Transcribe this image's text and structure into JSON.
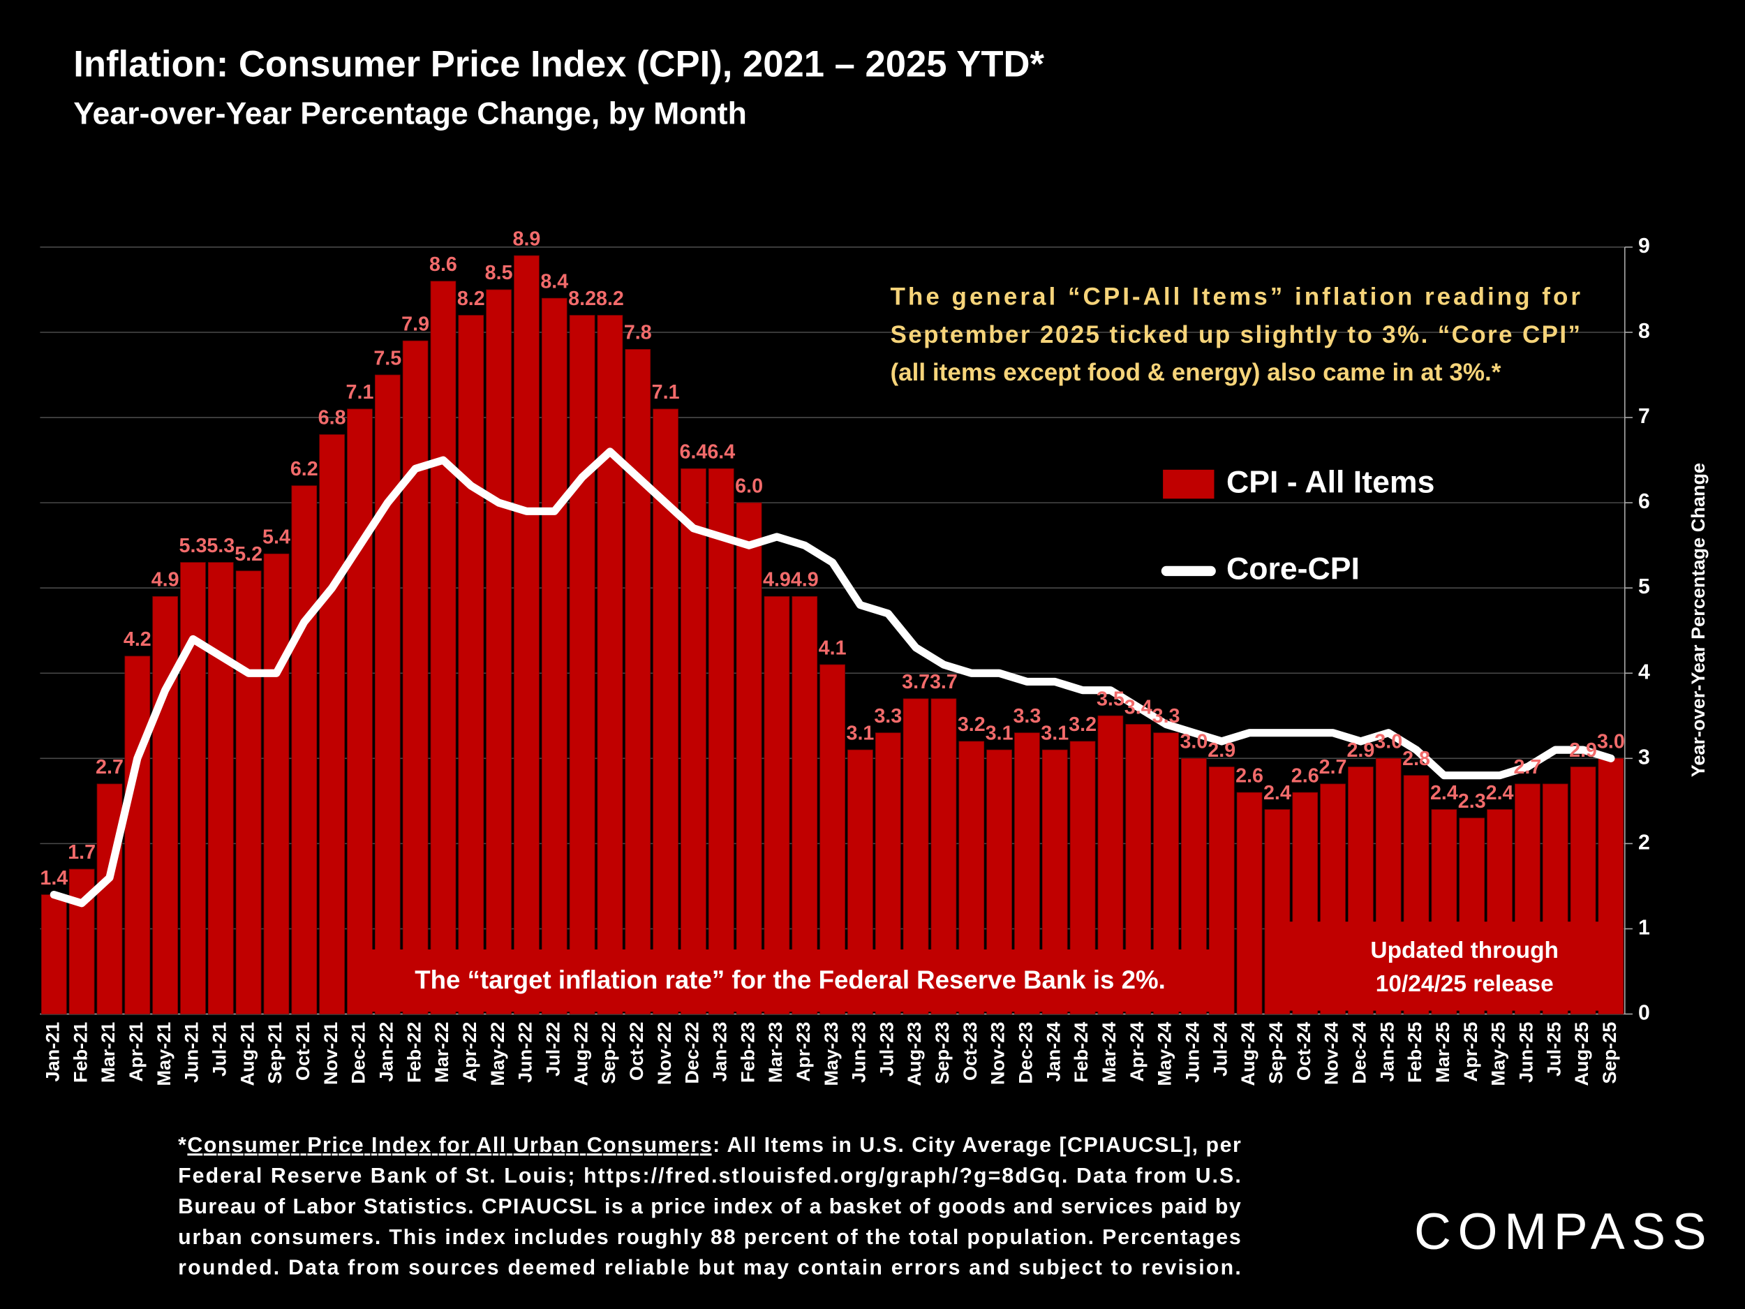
{
  "chart_data": {
    "type": "bar",
    "title": "Inflation: Consumer Price Index (CPI), 2021 – 2025 YTD*",
    "subtitle": "Year-over-Year Percentage Change, by Month",
    "categories": [
      "Jan-21",
      "Feb-21",
      "Mar-21",
      "Apr-21",
      "May-21",
      "Jun-21",
      "Jul-21",
      "Aug-21",
      "Sep-21",
      "Oct-21",
      "Nov-21",
      "Dec-21",
      "Jan-22",
      "Feb-22",
      "Mar-22",
      "Apr-22",
      "May-22",
      "Jun-22",
      "Jul-22",
      "Aug-22",
      "Sep-22",
      "Oct-22",
      "Nov-22",
      "Dec-22",
      "Jan-23",
      "Feb-23",
      "Mar-23",
      "Apr-23",
      "May-23",
      "Jun-23",
      "Jul-23",
      "Aug-23",
      "Sep-23",
      "Oct-23",
      "Nov-23",
      "Dec-23",
      "Jan-24",
      "Feb-24",
      "Mar-24",
      "Apr-24",
      "May-24",
      "Jun-24",
      "Jul-24",
      "Aug-24",
      "Sep-24",
      "Oct-24",
      "Nov-24",
      "Dec-24",
      "Jan-25",
      "Feb-25",
      "Mar-25",
      "Apr-25",
      "May-25",
      "Jun-25",
      "Jul-25",
      "Aug-25",
      "Sep-25"
    ],
    "series": [
      {
        "name": "CPI - All Items",
        "type": "bar",
        "color": "#c00000",
        "label_color": "#f26b6b",
        "values": [
          1.4,
          1.7,
          2.7,
          4.2,
          4.9,
          5.3,
          5.3,
          5.2,
          5.4,
          6.2,
          6.8,
          7.1,
          7.5,
          7.9,
          8.6,
          8.2,
          8.5,
          8.9,
          8.4,
          8.2,
          8.2,
          7.8,
          7.1,
          6.4,
          6.4,
          6.0,
          4.9,
          4.9,
          4.1,
          3.1,
          3.3,
          3.7,
          3.7,
          3.2,
          3.1,
          3.3,
          3.1,
          3.2,
          3.5,
          3.4,
          3.3,
          3.0,
          2.9,
          2.6,
          2.4,
          2.6,
          2.7,
          2.9,
          3.0,
          2.8,
          2.4,
          2.3,
          2.4,
          2.7,
          2.7,
          2.9,
          3.0
        ],
        "value_labels": [
          "1.4",
          "1.7",
          "2.7",
          "4.2",
          "4.9",
          "5.3",
          "5.3",
          "5.2",
          "5.4",
          "6.2",
          "6.8",
          "7.1",
          "7.5",
          "7.9",
          "8.6",
          "8.2",
          "8.5",
          "8.9",
          "8.4",
          "8.2",
          "8.2",
          "7.8",
          "7.1",
          "6.4",
          "6.4",
          "6.0",
          "4.9",
          "4.9",
          "4.1",
          "3.1",
          "3.3",
          "3.7",
          "3.7",
          "3.2",
          "3.1",
          "3.3",
          "3.1",
          "3.2",
          "3.5",
          "3.4",
          "3.3",
          "3.0",
          "2.9",
          "2.6",
          "2.4",
          "2.6",
          "2.7",
          "2.9",
          "3.0",
          "2.8",
          "2.4",
          "2.3",
          "2.4",
          "2.7",
          null,
          "2.9",
          "3.0"
        ]
      },
      {
        "name": "Core-CPI",
        "type": "line",
        "color": "#ffffff",
        "values": [
          1.4,
          1.3,
          1.6,
          3.0,
          3.8,
          4.4,
          4.2,
          4.0,
          4.0,
          4.6,
          5.0,
          5.5,
          6.0,
          6.4,
          6.5,
          6.2,
          6.0,
          5.9,
          5.9,
          6.3,
          6.6,
          6.3,
          6.0,
          5.7,
          5.6,
          5.5,
          5.6,
          5.5,
          5.3,
          4.8,
          4.7,
          4.3,
          4.1,
          4.0,
          4.0,
          3.9,
          3.9,
          3.8,
          3.8,
          3.6,
          3.4,
          3.3,
          3.2,
          3.3,
          3.3,
          3.3,
          3.3,
          3.2,
          3.3,
          3.1,
          2.8,
          2.8,
          2.8,
          2.9,
          3.1,
          3.1,
          3.0
        ]
      }
    ],
    "ylim": [
      0,
      9
    ],
    "yticks": [
      0,
      1,
      2,
      3,
      4,
      5,
      6,
      7,
      8,
      9
    ],
    "grid": true,
    "y_label": "Year-over-Year Percentage Change",
    "legend_position": "right",
    "annotation_lines": [
      "The general “CPI-All Items” inflation reading for",
      "September 2025 ticked up slightly to 3%. “Core CPI”",
      "(all items except food & energy) also came in at 3%.*"
    ],
    "target_note": "The “target inflation rate” for the Federal Reserve Bank is 2%.",
    "update_note": [
      "Updated through",
      "10/24/25 release"
    ]
  },
  "footnote": {
    "marker": "*",
    "link": "Consumer Price Index for All Urban Consumers",
    "lines": [
      ": All Items in U.S. City Average [CPIAUCSL], per",
      "Federal Reserve Bank of St. Louis; https://fred.stlouisfed.org/graph/?g=8dGq. Data from U.S.",
      "Bureau of Labor Statistics. CPIAUCSL is a price index of a basket of goods and services paid by",
      "urban consumers. This index includes roughly 88 percent of the total population. Percentages",
      "rounded. Data from sources deemed reliable but may contain errors and subject to revision."
    ]
  },
  "logo": "COMPASS"
}
